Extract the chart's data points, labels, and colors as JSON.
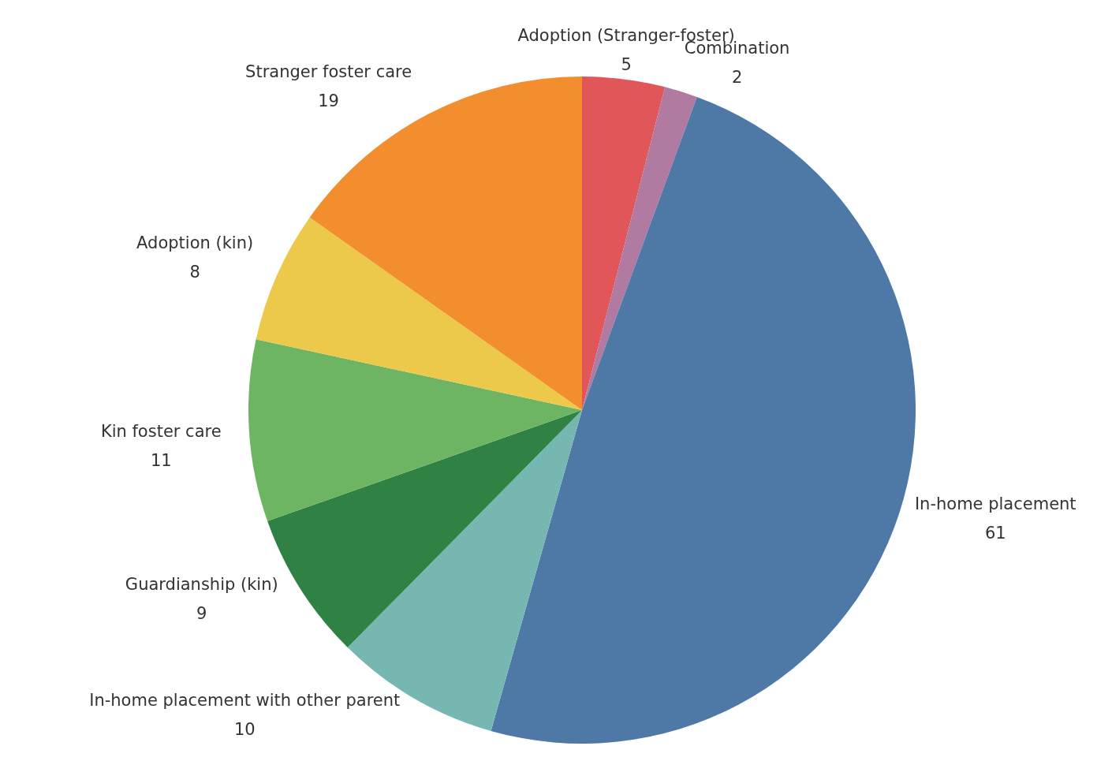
{
  "chart_data": {
    "type": "pie",
    "categories": [
      "Adoption (Stranger-foster)",
      "Combination",
      "In-home placement",
      "In-home placement with other parent",
      "Guardianship (kin)",
      "Kin foster care",
      "Adoption (kin)",
      "Stranger foster care"
    ],
    "values": [
      5,
      2,
      61,
      10,
      9,
      11,
      8,
      19
    ],
    "colors": [
      "#e15759",
      "#b07aa1",
      "#4e79a7",
      "#76b7b2",
      "#2f8243",
      "#6db463",
      "#ecc94b",
      "#f28e2d"
    ],
    "data_labels": true
  }
}
